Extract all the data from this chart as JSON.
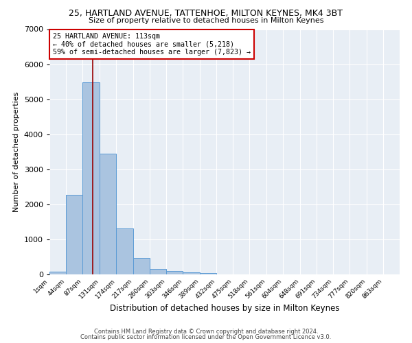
{
  "title_line1": "25, HARTLAND AVENUE, TATTENHOE, MILTON KEYNES, MK4 3BT",
  "title_line2": "Size of property relative to detached houses in Milton Keynes",
  "xlabel": "Distribution of detached houses by size in Milton Keynes",
  "ylabel": "Number of detached properties",
  "bar_color": "#aac4e0",
  "bar_edge_color": "#5b9bd5",
  "bg_color": "#e8eef5",
  "grid_color": "#ffffff",
  "annotation_line1": "25 HARTLAND AVENUE: 113sqm",
  "annotation_line2": "← 40% of detached houses are smaller (5,218)",
  "annotation_line3": "59% of semi-detached houses are larger (7,823) →",
  "annotation_box_color": "#cc0000",
  "vline_color": "#990000",
  "property_size": 113,
  "categories": [
    "1sqm",
    "44sqm",
    "87sqm",
    "131sqm",
    "174sqm",
    "217sqm",
    "260sqm",
    "303sqm",
    "346sqm",
    "389sqm",
    "432sqm",
    "475sqm",
    "518sqm",
    "561sqm",
    "604sqm",
    "648sqm",
    "691sqm",
    "734sqm",
    "777sqm",
    "820sqm",
    "863sqm"
  ],
  "bin_edges": [
    1,
    44,
    87,
    131,
    174,
    217,
    260,
    303,
    346,
    389,
    432,
    475,
    518,
    561,
    604,
    648,
    691,
    734,
    777,
    820,
    863,
    906
  ],
  "bar_heights": [
    80,
    2280,
    5480,
    3450,
    1310,
    470,
    160,
    100,
    60,
    30,
    0,
    0,
    0,
    0,
    0,
    0,
    0,
    0,
    0,
    0,
    0
  ],
  "ylim": [
    0,
    7000
  ],
  "yticks": [
    0,
    1000,
    2000,
    3000,
    4000,
    5000,
    6000,
    7000
  ],
  "footer_line1": "Contains HM Land Registry data © Crown copyright and database right 2024.",
  "footer_line2": "Contains public sector information licensed under the Open Government Licence v3.0."
}
